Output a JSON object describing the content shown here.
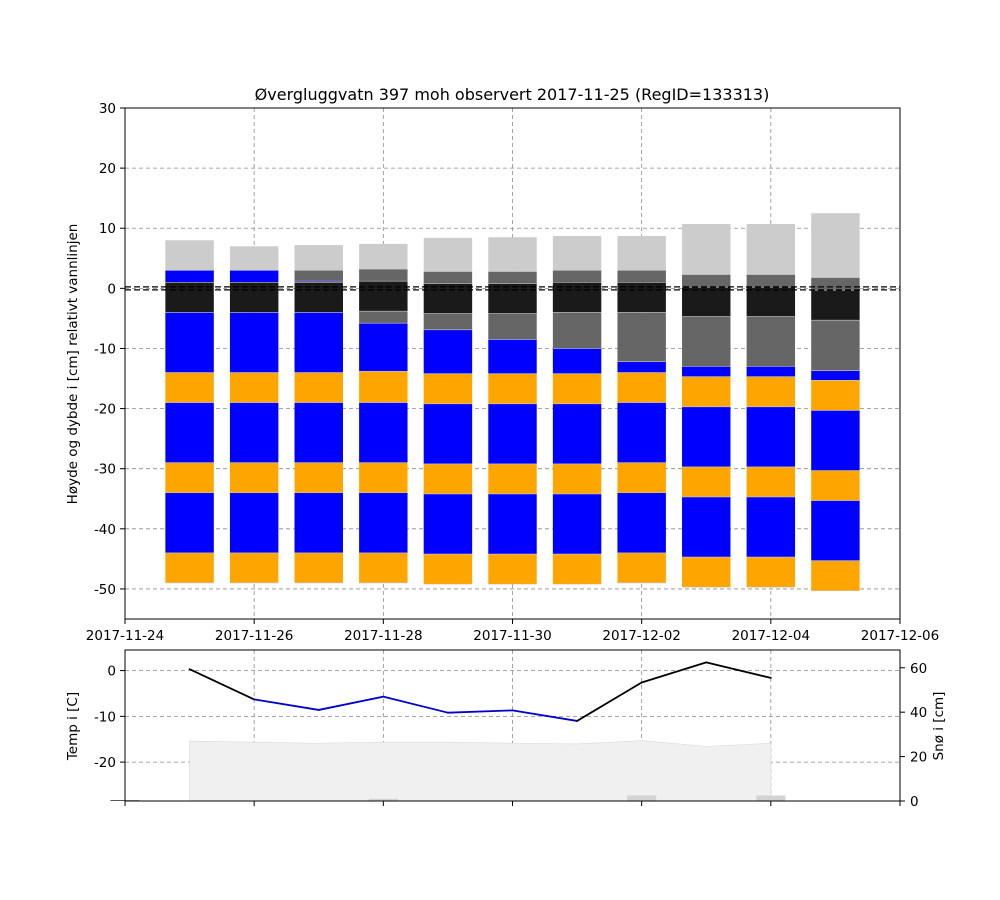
{
  "chart_data": [
    {
      "type": "bar",
      "title": "Øvergluggvatn 397 moh observert 2017-11-25 (RegID=133313)",
      "ylabel": "Høyde og dybde i [cm] relativt vannlinjen",
      "xlabel": "",
      "x_tick_labels": [
        "2017-11-24",
        "2017-11-26",
        "2017-11-28",
        "2017-11-30",
        "2017-12-02",
        "2017-12-04",
        "2017-12-06"
      ],
      "y_ticks": [
        30,
        20,
        10,
        0,
        -10,
        -20,
        -30,
        -40,
        -50
      ],
      "ylim": [
        -55,
        30
      ],
      "xlim": [
        "2017-11-24",
        "2017-12-06"
      ],
      "grid": true,
      "waterline": 0,
      "colors": {
        "new_snow": "#cccccc",
        "old_snow": "#666666",
        "slush": "#1a1a1a",
        "black_ice": "#0000ff",
        "slush_ice": "#ffa500",
        "waterline": "#000000"
      },
      "bars": [
        {
          "date": "2017-11-25",
          "layers": [
            {
              "type": "new_snow",
              "top": 8,
              "bottom": 3
            },
            {
              "type": "black_ice",
              "top": 3,
              "bottom": 1
            },
            {
              "type": "slush",
              "top": 1,
              "bottom": -4
            },
            {
              "type": "black_ice",
              "top": -4,
              "bottom": -14
            },
            {
              "type": "slush_ice",
              "top": -14,
              "bottom": -19
            },
            {
              "type": "black_ice",
              "top": -19,
              "bottom": -29
            },
            {
              "type": "slush_ice",
              "top": -29,
              "bottom": -34
            },
            {
              "type": "black_ice",
              "top": -34,
              "bottom": -44
            },
            {
              "type": "slush_ice",
              "top": -44,
              "bottom": -49
            }
          ]
        },
        {
          "date": "2017-11-26",
          "layers": [
            {
              "type": "new_snow",
              "top": 7,
              "bottom": 3
            },
            {
              "type": "black_ice",
              "top": 3,
              "bottom": 1
            },
            {
              "type": "slush",
              "top": 1,
              "bottom": -4
            },
            {
              "type": "black_ice",
              "top": -4,
              "bottom": -14
            },
            {
              "type": "slush_ice",
              "top": -14,
              "bottom": -19
            },
            {
              "type": "black_ice",
              "top": -19,
              "bottom": -29
            },
            {
              "type": "slush_ice",
              "top": -29,
              "bottom": -34
            },
            {
              "type": "black_ice",
              "top": -34,
              "bottom": -44
            },
            {
              "type": "slush_ice",
              "top": -44,
              "bottom": -49
            }
          ]
        },
        {
          "date": "2017-11-27",
          "layers": [
            {
              "type": "new_snow",
              "top": 7.2,
              "bottom": 3
            },
            {
              "type": "old_snow",
              "top": 3,
              "bottom": 1.2
            },
            {
              "type": "black_ice",
              "top": 1.2,
              "bottom": 1
            },
            {
              "type": "slush",
              "top": 1,
              "bottom": -4
            },
            {
              "type": "black_ice",
              "top": -4,
              "bottom": -14
            },
            {
              "type": "slush_ice",
              "top": -14,
              "bottom": -19
            },
            {
              "type": "black_ice",
              "top": -19,
              "bottom": -29
            },
            {
              "type": "slush_ice",
              "top": -29,
              "bottom": -34
            },
            {
              "type": "black_ice",
              "top": -34,
              "bottom": -44
            },
            {
              "type": "slush_ice",
              "top": -44,
              "bottom": -49
            }
          ]
        },
        {
          "date": "2017-11-28",
          "layers": [
            {
              "type": "new_snow",
              "top": 7.4,
              "bottom": 3.2
            },
            {
              "type": "old_snow",
              "top": 3.2,
              "bottom": 1.2
            },
            {
              "type": "slush",
              "top": 1.2,
              "bottom": -3.8
            },
            {
              "type": "old_snow",
              "top": -3.8,
              "bottom": -5.8
            },
            {
              "type": "black_ice",
              "top": -5.8,
              "bottom": -13.8
            },
            {
              "type": "slush_ice",
              "top": -13.8,
              "bottom": -19
            },
            {
              "type": "black_ice",
              "top": -19,
              "bottom": -29
            },
            {
              "type": "slush_ice",
              "top": -29,
              "bottom": -34
            },
            {
              "type": "black_ice",
              "top": -34,
              "bottom": -44
            },
            {
              "type": "slush_ice",
              "top": -44,
              "bottom": -49
            }
          ]
        },
        {
          "date": "2017-11-29",
          "layers": [
            {
              "type": "new_snow",
              "top": 8.4,
              "bottom": 2.8
            },
            {
              "type": "old_snow",
              "top": 2.8,
              "bottom": 0.8
            },
            {
              "type": "slush",
              "top": 0.8,
              "bottom": -4.2
            },
            {
              "type": "old_snow",
              "top": -4.2,
              "bottom": -6.9
            },
            {
              "type": "black_ice",
              "top": -6.9,
              "bottom": -14.2
            },
            {
              "type": "slush_ice",
              "top": -14.2,
              "bottom": -19.2
            },
            {
              "type": "black_ice",
              "top": -19.2,
              "bottom": -29.2
            },
            {
              "type": "slush_ice",
              "top": -29.2,
              "bottom": -34.2
            },
            {
              "type": "black_ice",
              "top": -34.2,
              "bottom": -44.2
            },
            {
              "type": "slush_ice",
              "top": -44.2,
              "bottom": -49.2
            }
          ]
        },
        {
          "date": "2017-11-30",
          "layers": [
            {
              "type": "new_snow",
              "top": 8.5,
              "bottom": 2.8
            },
            {
              "type": "old_snow",
              "top": 2.8,
              "bottom": 0.8
            },
            {
              "type": "slush",
              "top": 0.8,
              "bottom": -4.2
            },
            {
              "type": "old_snow",
              "top": -4.2,
              "bottom": -8.5
            },
            {
              "type": "black_ice",
              "top": -8.5,
              "bottom": -14.2
            },
            {
              "type": "slush_ice",
              "top": -14.2,
              "bottom": -19.2
            },
            {
              "type": "black_ice",
              "top": -19.2,
              "bottom": -29.2
            },
            {
              "type": "slush_ice",
              "top": -29.2,
              "bottom": -34.2
            },
            {
              "type": "black_ice",
              "top": -34.2,
              "bottom": -44.2
            },
            {
              "type": "slush_ice",
              "top": -44.2,
              "bottom": -49.2
            }
          ]
        },
        {
          "date": "2017-12-01",
          "layers": [
            {
              "type": "new_snow",
              "top": 8.7,
              "bottom": 3
            },
            {
              "type": "old_snow",
              "top": 3,
              "bottom": 1
            },
            {
              "type": "slush",
              "top": 1,
              "bottom": -4
            },
            {
              "type": "old_snow",
              "top": -4,
              "bottom": -10
            },
            {
              "type": "black_ice",
              "top": -10,
              "bottom": -14.2
            },
            {
              "type": "slush_ice",
              "top": -14.2,
              "bottom": -19.2
            },
            {
              "type": "black_ice",
              "top": -19.2,
              "bottom": -29.2
            },
            {
              "type": "slush_ice",
              "top": -29.2,
              "bottom": -34.2
            },
            {
              "type": "black_ice",
              "top": -34.2,
              "bottom": -44.2
            },
            {
              "type": "slush_ice",
              "top": -44.2,
              "bottom": -49.2
            }
          ]
        },
        {
          "date": "2017-12-02",
          "layers": [
            {
              "type": "new_snow",
              "top": 8.7,
              "bottom": 3
            },
            {
              "type": "old_snow",
              "top": 3,
              "bottom": 1
            },
            {
              "type": "slush",
              "top": 1,
              "bottom": -4
            },
            {
              "type": "old_snow",
              "top": -4,
              "bottom": -12.2
            },
            {
              "type": "black_ice",
              "top": -12.2,
              "bottom": -14
            },
            {
              "type": "slush_ice",
              "top": -14,
              "bottom": -19
            },
            {
              "type": "black_ice",
              "top": -19,
              "bottom": -29
            },
            {
              "type": "slush_ice",
              "top": -29,
              "bottom": -34
            },
            {
              "type": "black_ice",
              "top": -34,
              "bottom": -44
            },
            {
              "type": "slush_ice",
              "top": -44,
              "bottom": -49
            }
          ]
        },
        {
          "date": "2017-12-03",
          "layers": [
            {
              "type": "new_snow",
              "top": 10.7,
              "bottom": 2.3
            },
            {
              "type": "old_snow",
              "top": 2.3,
              "bottom": 0.2
            },
            {
              "type": "slush",
              "top": 0.2,
              "bottom": -4.7
            },
            {
              "type": "old_snow",
              "top": -4.7,
              "bottom": -13
            },
            {
              "type": "black_ice",
              "top": -13,
              "bottom": -14.7
            },
            {
              "type": "slush_ice",
              "top": -14.7,
              "bottom": -19.7
            },
            {
              "type": "black_ice",
              "top": -19.7,
              "bottom": -29.7
            },
            {
              "type": "slush_ice",
              "top": -29.7,
              "bottom": -34.7
            },
            {
              "type": "black_ice",
              "top": -34.7,
              "bottom": -44.7
            },
            {
              "type": "slush_ice",
              "top": -44.7,
              "bottom": -49.7
            }
          ]
        },
        {
          "date": "2017-12-04",
          "layers": [
            {
              "type": "new_snow",
              "top": 10.7,
              "bottom": 2.3
            },
            {
              "type": "old_snow",
              "top": 2.3,
              "bottom": 0.2
            },
            {
              "type": "slush",
              "top": 0.2,
              "bottom": -4.7
            },
            {
              "type": "old_snow",
              "top": -4.7,
              "bottom": -13
            },
            {
              "type": "black_ice",
              "top": -13,
              "bottom": -14.7
            },
            {
              "type": "slush_ice",
              "top": -14.7,
              "bottom": -19.7
            },
            {
              "type": "black_ice",
              "top": -19.7,
              "bottom": -29.7
            },
            {
              "type": "slush_ice",
              "top": -29.7,
              "bottom": -34.7
            },
            {
              "type": "black_ice",
              "top": -34.7,
              "bottom": -44.7
            },
            {
              "type": "slush_ice",
              "top": -44.7,
              "bottom": -49.7
            }
          ]
        },
        {
          "date": "2017-12-05",
          "layers": [
            {
              "type": "new_snow",
              "top": 12.5,
              "bottom": 1.8
            },
            {
              "type": "old_snow",
              "top": 1.8,
              "bottom": -0.3
            },
            {
              "type": "slush",
              "top": -0.3,
              "bottom": -5.3
            },
            {
              "type": "old_snow",
              "top": -5.3,
              "bottom": -13.7
            },
            {
              "type": "black_ice",
              "top": -13.7,
              "bottom": -15.3
            },
            {
              "type": "slush_ice",
              "top": -15.3,
              "bottom": -20.3
            },
            {
              "type": "black_ice",
              "top": -20.3,
              "bottom": -30.3
            },
            {
              "type": "slush_ice",
              "top": -30.3,
              "bottom": -35.3
            },
            {
              "type": "black_ice",
              "top": -35.3,
              "bottom": -45.3
            },
            {
              "type": "slush_ice",
              "top": -45.3,
              "bottom": -50.3
            }
          ]
        }
      ]
    },
    {
      "type": "line",
      "ylabel": "Temp i [C]",
      "ylabel_right": "Snø i [cm]",
      "y_ticks": [
        0,
        -10,
        -20
      ],
      "ylim": [
        -28.5,
        4.5
      ],
      "y2_ticks": [
        60,
        40,
        20,
        0
      ],
      "y2lim": [
        0,
        68
      ],
      "xlim": [
        "2017-11-24",
        "2017-12-06"
      ],
      "grid": true,
      "colors": {
        "temperature": "#000000",
        "temperature_cold": "#0000cc",
        "snow_depth": "#f0f0f0",
        "precipitation": "#d3d3d3"
      },
      "temperature": {
        "dates": [
          "2017-11-25",
          "2017-11-26",
          "2017-11-27",
          "2017-11-28",
          "2017-11-29",
          "2017-11-30",
          "2017-12-01",
          "2017-12-02",
          "2017-12-03",
          "2017-12-04"
        ],
        "values": [
          0.3,
          -6.3,
          -8.6,
          -5.7,
          -9.2,
          -8.7,
          -11.0,
          -2.6,
          1.8,
          -1.6
        ]
      },
      "snow_depth": {
        "dates": [
          "2017-11-25",
          "2017-11-26",
          "2017-11-27",
          "2017-11-28",
          "2017-11-29",
          "2017-11-30",
          "2017-12-01",
          "2017-12-02",
          "2017-12-03",
          "2017-12-04"
        ],
        "values": [
          27,
          26.5,
          26,
          26.5,
          26.5,
          26,
          25.7,
          27.2,
          24.6,
          26
        ]
      },
      "precipitation": {
        "dates": [
          "2017-11-24",
          "2017-11-28",
          "2017-12-02",
          "2017-12-04"
        ],
        "values": [
          0.3,
          1.0,
          2.5,
          2.5
        ]
      }
    }
  ]
}
